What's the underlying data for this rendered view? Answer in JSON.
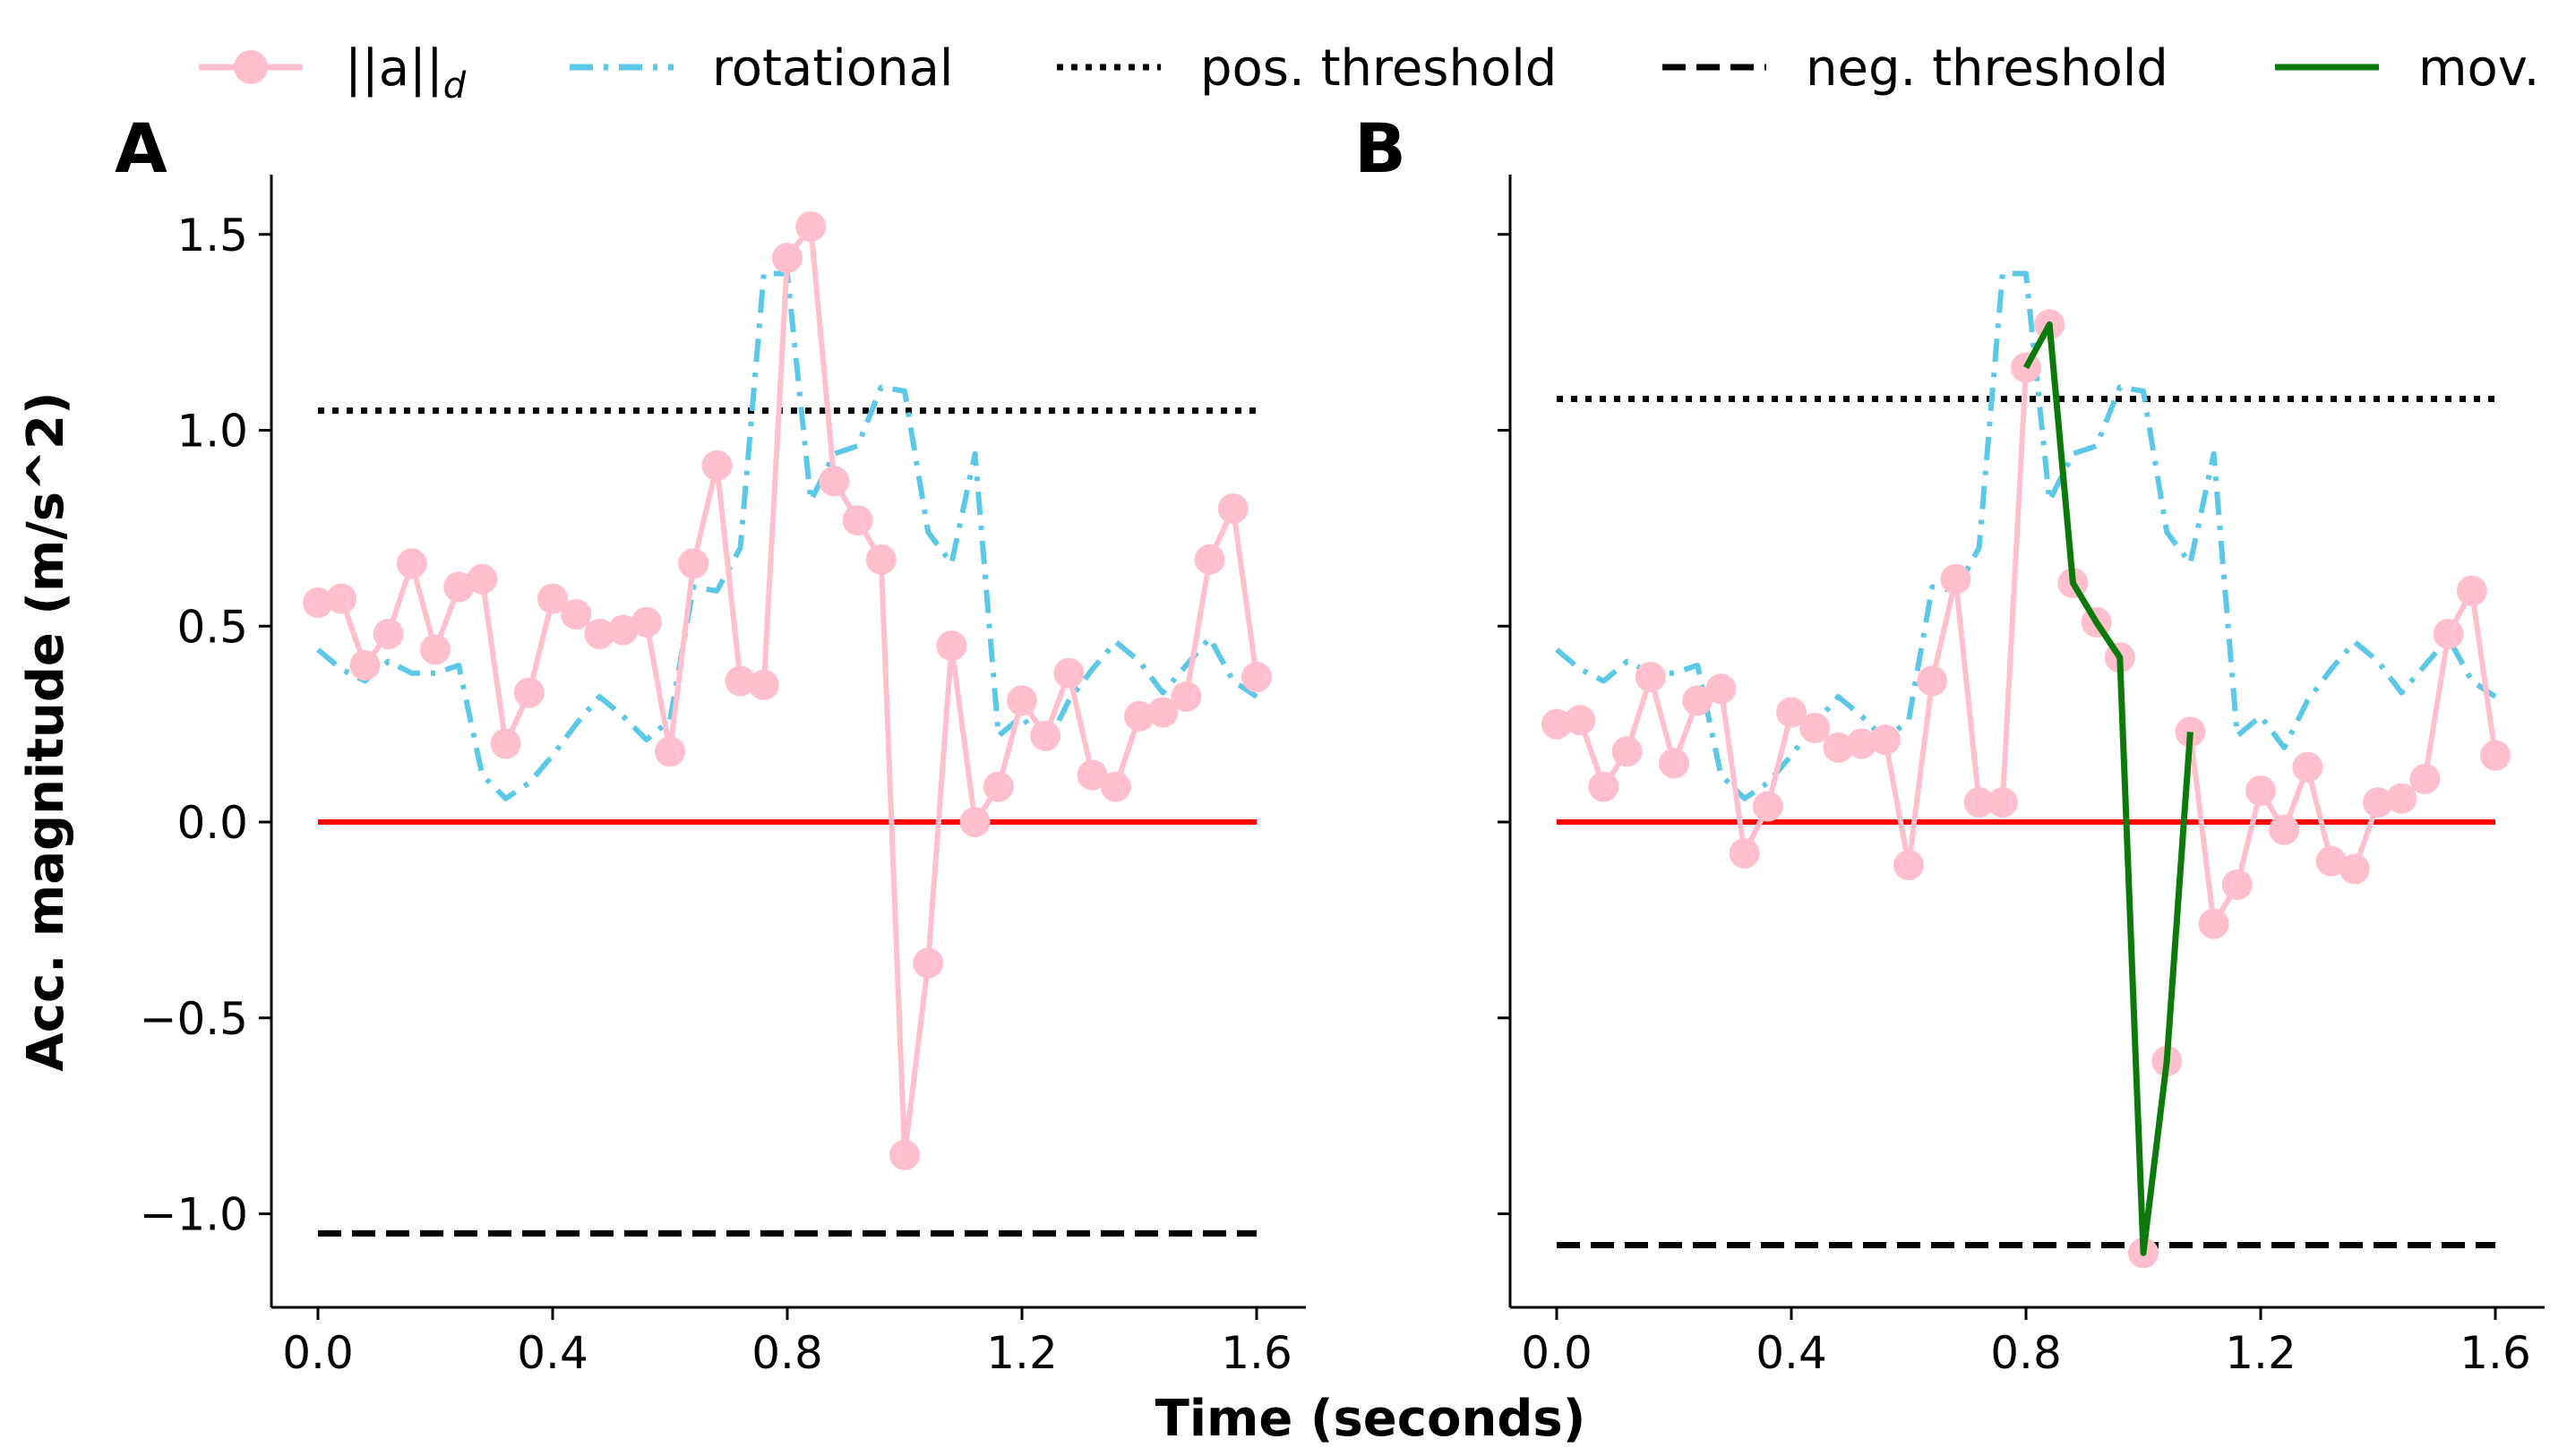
{
  "colors": {
    "acc": "#ffbfcc",
    "rot": "#5bc8e8",
    "thr": "#000000",
    "zero": "#ff0000",
    "mov": "#0b7a0b"
  },
  "legend": {
    "acc": "||a||",
    "acc_sub": "d",
    "rotational": "rotational",
    "pos_threshold": "pos. threshold",
    "neg_threshold": "neg. threshold",
    "mov": "mov."
  },
  "xlabel": "Time (seconds)",
  "ylabel": "Acc. magnitude (m/s^2)",
  "chart_data": [
    {
      "type": "line",
      "panel": "A",
      "xlim": [
        -0.07,
        1.67
      ],
      "ylim": [
        -1.23,
        1.65
      ],
      "xticks": [
        0.0,
        0.4,
        0.8,
        1.2,
        1.6
      ],
      "xtick_labels": [
        "0.0",
        "0.4",
        "0.8",
        "1.2",
        "1.6"
      ],
      "yticks": [
        1.5,
        1.0,
        0.5,
        0.0,
        -0.5,
        -1.0
      ],
      "ytick_labels": [
        "1.5",
        "1.0",
        "0.5",
        "0.0",
        "−0.5",
        "−1.0"
      ],
      "pos_threshold": 1.05,
      "neg_threshold": -1.05,
      "zero_line": 0.0,
      "acc_x": [
        0.0,
        0.04,
        0.08,
        0.12,
        0.16,
        0.2,
        0.24,
        0.28,
        0.32,
        0.36,
        0.4,
        0.44,
        0.48,
        0.52,
        0.56,
        0.6,
        0.64,
        0.68,
        0.72,
        0.76,
        0.8,
        0.84,
        0.88,
        0.92,
        0.96,
        1.0,
        1.04,
        1.08,
        1.12,
        1.16,
        1.2,
        1.24,
        1.28,
        1.32,
        1.36,
        1.4,
        1.44,
        1.48,
        1.52,
        1.56,
        1.6
      ],
      "acc_y": [
        0.56,
        0.57,
        0.4,
        0.48,
        0.66,
        0.44,
        0.6,
        0.62,
        0.2,
        0.33,
        0.57,
        0.53,
        0.48,
        0.49,
        0.51,
        0.18,
        0.66,
        0.91,
        0.36,
        0.35,
        1.44,
        1.52,
        0.87,
        0.77,
        0.67,
        -0.85,
        -0.36,
        0.45,
        0.0,
        0.09,
        0.31,
        0.22,
        0.38,
        0.12,
        0.09,
        0.27,
        0.28,
        0.32,
        0.67,
        0.8,
        0.37
      ],
      "rot_x": [
        0.0,
        0.04,
        0.08,
        0.12,
        0.16,
        0.2,
        0.24,
        0.28,
        0.32,
        0.36,
        0.4,
        0.44,
        0.48,
        0.52,
        0.56,
        0.6,
        0.64,
        0.68,
        0.72,
        0.76,
        0.8,
        0.84,
        0.88,
        0.92,
        0.96,
        1.0,
        1.04,
        1.08,
        1.12,
        1.16,
        1.2,
        1.24,
        1.28,
        1.32,
        1.36,
        1.4,
        1.44,
        1.48,
        1.52,
        1.56,
        1.6
      ],
      "rot_y": [
        0.44,
        0.39,
        0.36,
        0.41,
        0.38,
        0.38,
        0.4,
        0.12,
        0.06,
        0.1,
        0.17,
        0.25,
        0.32,
        0.27,
        0.21,
        0.26,
        0.6,
        0.59,
        0.7,
        1.4,
        1.4,
        0.82,
        0.94,
        0.96,
        1.11,
        1.1,
        0.74,
        0.66,
        0.94,
        0.22,
        0.27,
        0.19,
        0.31,
        0.39,
        0.46,
        0.41,
        0.33,
        0.4,
        0.47,
        0.36,
        0.32
      ]
    },
    {
      "type": "line",
      "panel": "B",
      "xlim": [
        -0.07,
        1.67
      ],
      "ylim": [
        -1.23,
        1.65
      ],
      "xticks": [
        0.0,
        0.4,
        0.8,
        1.2,
        1.6
      ],
      "xtick_labels": [
        "0.0",
        "0.4",
        "0.8",
        "1.2",
        "1.6"
      ],
      "yticks": [
        1.5,
        1.0,
        0.5,
        0.0,
        -0.5,
        -1.0
      ],
      "pos_threshold": 1.08,
      "neg_threshold": -1.08,
      "zero_line": 0.0,
      "acc_x": [
        0.0,
        0.04,
        0.08,
        0.12,
        0.16,
        0.2,
        0.24,
        0.28,
        0.32,
        0.36,
        0.4,
        0.44,
        0.48,
        0.52,
        0.56,
        0.6,
        0.64,
        0.68,
        0.72,
        0.76,
        0.8,
        0.84,
        0.88,
        0.92,
        0.96,
        1.0,
        1.04,
        1.08,
        1.12,
        1.16,
        1.2,
        1.24,
        1.28,
        1.32,
        1.36,
        1.4,
        1.44,
        1.48,
        1.52,
        1.56,
        1.6
      ],
      "acc_y": [
        0.25,
        0.26,
        0.09,
        0.18,
        0.37,
        0.15,
        0.31,
        0.34,
        -0.08,
        0.04,
        0.28,
        0.24,
        0.19,
        0.2,
        0.21,
        -0.11,
        0.36,
        0.62,
        0.05,
        0.05,
        1.16,
        1.27,
        0.61,
        0.51,
        0.42,
        -1.1,
        -0.61,
        0.23,
        -0.26,
        -0.16,
        0.08,
        -0.02,
        0.14,
        -0.1,
        -0.12,
        0.05,
        0.06,
        0.11,
        0.48,
        0.59,
        0.17
      ],
      "rot_x": [
        0.0,
        0.04,
        0.08,
        0.12,
        0.16,
        0.2,
        0.24,
        0.28,
        0.32,
        0.36,
        0.4,
        0.44,
        0.48,
        0.52,
        0.56,
        0.6,
        0.64,
        0.68,
        0.72,
        0.76,
        0.8,
        0.84,
        0.88,
        0.92,
        0.96,
        1.0,
        1.04,
        1.08,
        1.12,
        1.16,
        1.2,
        1.24,
        1.28,
        1.32,
        1.36,
        1.4,
        1.44,
        1.48,
        1.52,
        1.56,
        1.6
      ],
      "rot_y": [
        0.44,
        0.39,
        0.36,
        0.41,
        0.38,
        0.38,
        0.4,
        0.12,
        0.06,
        0.1,
        0.17,
        0.25,
        0.32,
        0.27,
        0.21,
        0.26,
        0.6,
        0.59,
        0.7,
        1.4,
        1.4,
        0.82,
        0.94,
        0.96,
        1.11,
        1.1,
        0.74,
        0.66,
        0.94,
        0.22,
        0.27,
        0.19,
        0.31,
        0.39,
        0.46,
        0.41,
        0.33,
        0.4,
        0.47,
        0.36,
        0.32
      ],
      "mov_x": [
        0.8,
        0.84,
        0.88,
        0.92,
        0.96,
        1.0,
        1.04,
        1.08
      ],
      "mov_y": [
        1.16,
        1.27,
        0.61,
        0.51,
        0.42,
        -1.1,
        -0.61,
        0.23
      ]
    }
  ]
}
